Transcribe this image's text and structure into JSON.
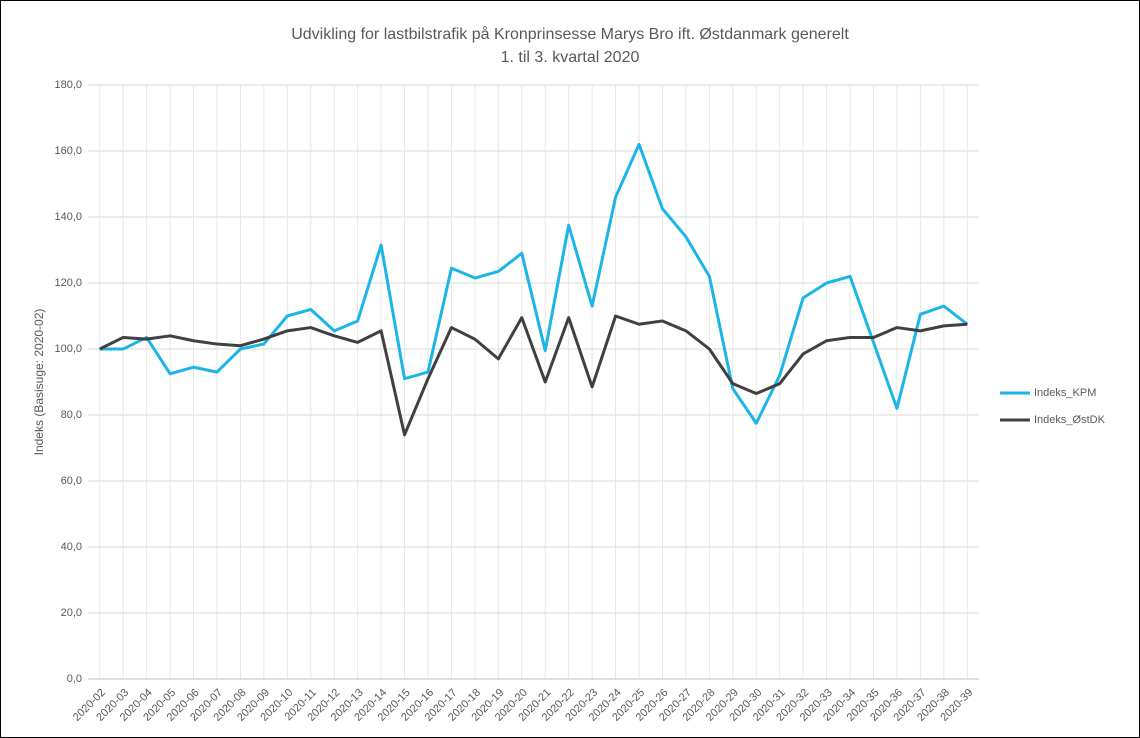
{
  "chart_data": {
    "type": "line",
    "title": "Udvikling for lastbilstrafik på Kronprinsesse Marys Bro ift. Østdanmark generelt",
    "subtitle": "1. til 3. kvartal 2020",
    "y_label": "Indeks (Basisuge: 2020-02)",
    "categories": [
      "2020-02",
      "2020-03",
      "2020-04",
      "2020-05",
      "2020-06",
      "2020-07",
      "2020-08",
      "2020-09",
      "2020-10",
      "2020-11",
      "2020-12",
      "2020-13",
      "2020-14",
      "2020-15",
      "2020-16",
      "2020-17",
      "2020-18",
      "2020-19",
      "2020-20",
      "2020-21",
      "2020-22",
      "2020-23",
      "2020-24",
      "2020-25",
      "2020-26",
      "2020-27",
      "2020-28",
      "2020-29",
      "2020-30",
      "2020-31",
      "2020-32",
      "2020-33",
      "2020-34",
      "2020-35",
      "2020-36",
      "2020-37",
      "2020-38",
      "2020-39"
    ],
    "series": [
      {
        "name": "Indeks_KPM",
        "color": "#1cb5e8",
        "values": [
          100,
          100,
          103.5,
          92.5,
          94.5,
          93,
          100,
          101.5,
          110,
          112,
          105.5,
          108.5,
          131.5,
          91,
          93,
          124.5,
          121.5,
          123.5,
          129,
          99.5,
          137.5,
          113,
          146,
          162,
          142.5,
          134,
          122,
          88,
          77.5,
          92,
          115.5,
          120,
          122,
          102,
          82,
          110.5,
          113,
          107.5
        ]
      },
      {
        "name": "Indeks_ØstDK",
        "color": "#404040",
        "values": [
          100,
          103.5,
          103,
          104,
          102.5,
          101.5,
          101,
          103,
          105.5,
          106.5,
          104,
          102,
          105.5,
          74,
          91,
          106.5,
          103,
          97,
          109.5,
          90,
          109.5,
          88.5,
          110,
          107.5,
          108.5,
          105.5,
          100,
          89.5,
          86.5,
          89.5,
          98.5,
          102.5,
          103.5,
          103.5,
          106.5,
          105.5,
          107,
          107.5
        ]
      }
    ],
    "ylim": [
      0,
      180
    ],
    "yticks": [
      {
        "value": 0,
        "label": "0,0"
      },
      {
        "value": 20,
        "label": "20,0"
      },
      {
        "value": 40,
        "label": "40,0"
      },
      {
        "value": 60,
        "label": "60,0"
      },
      {
        "value": 80,
        "label": "80,0"
      },
      {
        "value": 100,
        "label": "100,0"
      },
      {
        "value": 120,
        "label": "120,0"
      },
      {
        "value": 140,
        "label": "140,0"
      },
      {
        "value": 160,
        "label": "160,0"
      },
      {
        "value": 180,
        "label": "180,0"
      }
    ],
    "grid": true,
    "legend": "right"
  }
}
